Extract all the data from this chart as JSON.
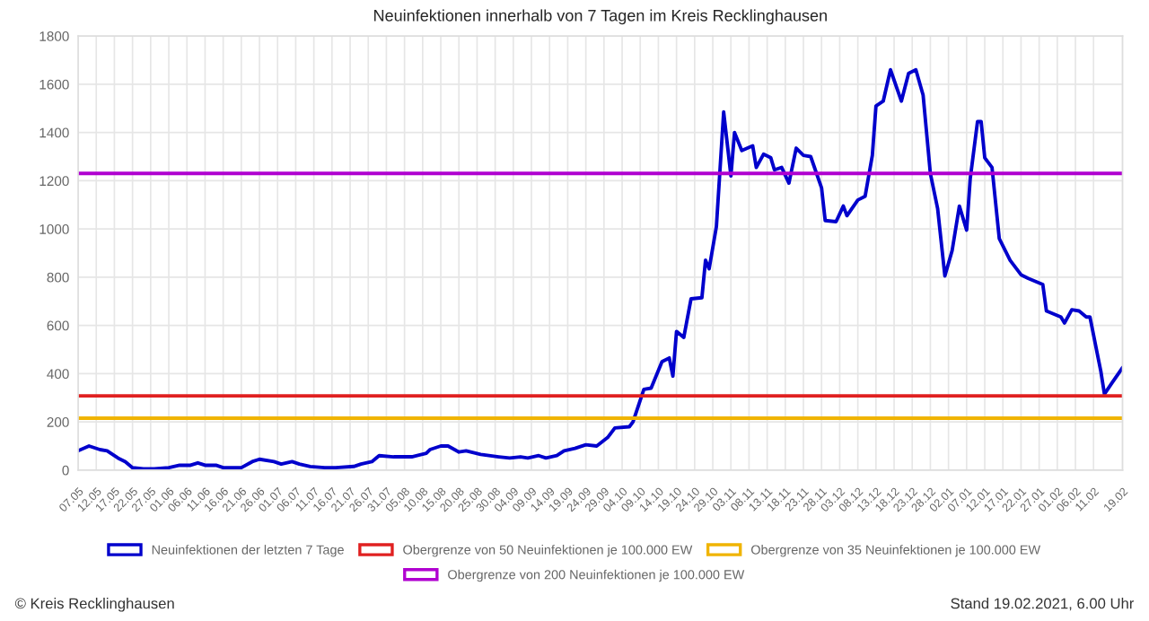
{
  "chart_data": {
    "type": "line",
    "title": "Neuinfektionen innerhalb von 7 Tagen im Kreis Recklinghausen",
    "x": [
      "2020-05-07",
      "2020-05-10",
      "2020-05-13",
      "2020-05-15",
      "2020-05-18",
      "2020-05-20",
      "2020-05-22",
      "2020-05-25",
      "2020-05-28",
      "2020-06-01",
      "2020-06-04",
      "2020-06-07",
      "2020-06-09",
      "2020-06-11",
      "2020-06-14",
      "2020-06-16",
      "2020-06-21",
      "2020-06-24",
      "2020-06-26",
      "2020-06-30",
      "2020-07-02",
      "2020-07-05",
      "2020-07-07",
      "2020-07-10",
      "2020-07-14",
      "2020-07-17",
      "2020-07-22",
      "2020-07-24",
      "2020-07-27",
      "2020-07-29",
      "2020-08-02",
      "2020-08-07",
      "2020-08-11",
      "2020-08-12",
      "2020-08-15",
      "2020-08-17",
      "2020-08-20",
      "2020-08-22",
      "2020-08-26",
      "2020-08-31",
      "2020-09-03",
      "2020-09-06",
      "2020-09-08",
      "2020-09-11",
      "2020-09-13",
      "2020-09-16",
      "2020-09-18",
      "2020-09-21",
      "2020-09-24",
      "2020-09-27",
      "2020-09-30",
      "2020-10-02",
      "2020-10-06",
      "2020-10-07",
      "2020-10-10",
      "2020-10-12",
      "2020-10-15",
      "2020-10-17",
      "2020-10-18",
      "2020-10-19",
      "2020-10-21",
      "2020-10-23",
      "2020-10-26",
      "2020-10-27",
      "2020-10-28",
      "2020-10-30",
      "2020-11-01",
      "2020-11-03",
      "2020-11-04",
      "2020-11-06",
      "2020-11-09",
      "2020-11-10",
      "2020-11-12",
      "2020-11-14",
      "2020-11-15",
      "2020-11-17",
      "2020-11-19",
      "2020-11-21",
      "2020-11-23",
      "2020-11-25",
      "2020-11-28",
      "2020-11-29",
      "2020-12-02",
      "2020-12-04",
      "2020-12-05",
      "2020-12-08",
      "2020-12-10",
      "2020-12-12",
      "2020-12-13",
      "2020-12-15",
      "2020-12-17",
      "2020-12-20",
      "2020-12-22",
      "2020-12-24",
      "2020-12-26",
      "2020-12-28",
      "2020-12-30",
      "2021-01-01",
      "2021-01-03",
      "2021-01-05",
      "2021-01-07",
      "2021-01-08",
      "2021-01-10",
      "2021-01-11",
      "2021-01-12",
      "2021-01-14",
      "2021-01-16",
      "2021-01-19",
      "2021-01-22",
      "2021-01-24",
      "2021-01-28",
      "2021-01-29",
      "2021-02-02",
      "2021-02-03",
      "2021-02-05",
      "2021-02-07",
      "2021-02-09",
      "2021-02-10",
      "2021-02-12",
      "2021-02-13",
      "2021-02-14",
      "2021-02-16",
      "2021-02-19"
    ],
    "series": [
      {
        "name": "Neuinfektionen der letzten 7 Tage",
        "color": "#0000cc",
        "values": [
          80,
          100,
          85,
          80,
          50,
          35,
          10,
          5,
          5,
          10,
          20,
          20,
          30,
          20,
          20,
          10,
          10,
          35,
          45,
          35,
          25,
          35,
          25,
          15,
          10,
          10,
          15,
          25,
          35,
          60,
          55,
          55,
          70,
          85,
          100,
          100,
          75,
          80,
          65,
          55,
          50,
          55,
          50,
          60,
          50,
          60,
          80,
          90,
          105,
          100,
          135,
          175,
          180,
          200,
          335,
          340,
          450,
          465,
          390,
          575,
          550,
          710,
          715,
          870,
          835,
          1010,
          1485,
          1220,
          1400,
          1325,
          1345,
          1255,
          1310,
          1295,
          1245,
          1255,
          1190,
          1335,
          1305,
          1300,
          1170,
          1035,
          1030,
          1095,
          1055,
          1120,
          1135,
          1305,
          1510,
          1530,
          1660,
          1530,
          1645,
          1660,
          1555,
          1230,
          1085,
          805,
          910,
          1095,
          995,
          1210,
          1445,
          1445,
          1295,
          1255,
          960,
          870,
          810,
          795,
          770,
          660,
          635,
          610,
          665,
          660,
          635,
          635,
          485,
          410,
          315,
          360,
          425
        ]
      }
    ],
    "ref_lines": [
      {
        "axis": "y",
        "value": 308,
        "label": "Obergrenze von 50 Neuinfektionen je 100.000 EW",
        "color": "#e02020"
      },
      {
        "axis": "y",
        "value": 215,
        "label": "Obergrenze von 35 Neuinfektionen je 100.000 EW",
        "color": "#f0b400"
      },
      {
        "axis": "y",
        "value": 1230,
        "label": "Obergrenze von 200 Neuinfektionen je 100.000 EW",
        "color": "#b000d0"
      }
    ],
    "xlim": [
      "2020-05-07",
      "2021-02-19"
    ],
    "xticks": [
      {
        "value": "2020-05-07",
        "label": "07.05"
      },
      {
        "value": "2020-05-12",
        "label": "12.05"
      },
      {
        "value": "2020-05-17",
        "label": "17.05"
      },
      {
        "value": "2020-05-22",
        "label": "22.05"
      },
      {
        "value": "2020-05-27",
        "label": "27.05"
      },
      {
        "value": "2020-06-01",
        "label": "01.06"
      },
      {
        "value": "2020-06-06",
        "label": "06.06"
      },
      {
        "value": "2020-06-11",
        "label": "11.06"
      },
      {
        "value": "2020-06-16",
        "label": "16.06"
      },
      {
        "value": "2020-06-21",
        "label": "21.06"
      },
      {
        "value": "2020-06-26",
        "label": "26.06"
      },
      {
        "value": "2020-07-01",
        "label": "01.07"
      },
      {
        "value": "2020-07-06",
        "label": "06.07"
      },
      {
        "value": "2020-07-11",
        "label": "11.07"
      },
      {
        "value": "2020-07-16",
        "label": "16.07"
      },
      {
        "value": "2020-07-21",
        "label": "21.07"
      },
      {
        "value": "2020-07-26",
        "label": "26.07"
      },
      {
        "value": "2020-07-31",
        "label": "31.07"
      },
      {
        "value": "2020-08-05",
        "label": "05.08"
      },
      {
        "value": "2020-08-10",
        "label": "10.08"
      },
      {
        "value": "2020-08-15",
        "label": "15.08"
      },
      {
        "value": "2020-08-20",
        "label": "20.08"
      },
      {
        "value": "2020-08-25",
        "label": "25.08"
      },
      {
        "value": "2020-08-30",
        "label": "30.08"
      },
      {
        "value": "2020-09-04",
        "label": "04.09"
      },
      {
        "value": "2020-09-09",
        "label": "09.09"
      },
      {
        "value": "2020-09-14",
        "label": "14.09"
      },
      {
        "value": "2020-09-19",
        "label": "19.09"
      },
      {
        "value": "2020-09-24",
        "label": "24.09"
      },
      {
        "value": "2020-09-29",
        "label": "29.09"
      },
      {
        "value": "2020-10-04",
        "label": "04.10"
      },
      {
        "value": "2020-10-09",
        "label": "09.10"
      },
      {
        "value": "2020-10-14",
        "label": "14.10"
      },
      {
        "value": "2020-10-19",
        "label": "19.10"
      },
      {
        "value": "2020-10-24",
        "label": "24.10"
      },
      {
        "value": "2020-10-29",
        "label": "29.10"
      },
      {
        "value": "2020-11-03",
        "label": "03.11"
      },
      {
        "value": "2020-11-08",
        "label": "08.11"
      },
      {
        "value": "2020-11-13",
        "label": "13.11"
      },
      {
        "value": "2020-11-18",
        "label": "18.11"
      },
      {
        "value": "2020-11-23",
        "label": "23.11"
      },
      {
        "value": "2020-11-28",
        "label": "28.11"
      },
      {
        "value": "2020-12-03",
        "label": "03.12"
      },
      {
        "value": "2020-12-08",
        "label": "08.12"
      },
      {
        "value": "2020-12-13",
        "label": "13.12"
      },
      {
        "value": "2020-12-18",
        "label": "18.12"
      },
      {
        "value": "2020-12-23",
        "label": "23.12"
      },
      {
        "value": "2020-12-28",
        "label": "28.12"
      },
      {
        "value": "2021-01-02",
        "label": "02.01"
      },
      {
        "value": "2021-01-07",
        "label": "07.01"
      },
      {
        "value": "2021-01-12",
        "label": "12.01"
      },
      {
        "value": "2021-01-17",
        "label": "17.01"
      },
      {
        "value": "2021-01-22",
        "label": "22.01"
      },
      {
        "value": "2021-01-27",
        "label": "27.01"
      },
      {
        "value": "2021-02-01",
        "label": "01.02"
      },
      {
        "value": "2021-02-06",
        "label": "06.02"
      },
      {
        "value": "2021-02-11",
        "label": "11.02"
      },
      {
        "value": "2021-02-19",
        "label": "19.02"
      }
    ],
    "ylim": [
      0,
      1800
    ],
    "yticks": [
      0,
      200,
      400,
      600,
      800,
      1000,
      1200,
      1400,
      1600,
      1800
    ],
    "grid": true,
    "legend": "bottom",
    "marker": "none",
    "line_style": "solid",
    "annotations": [
      "© Kreis Recklinghausen",
      "Stand 19.02.2021, 6.00 Uhr"
    ]
  }
}
